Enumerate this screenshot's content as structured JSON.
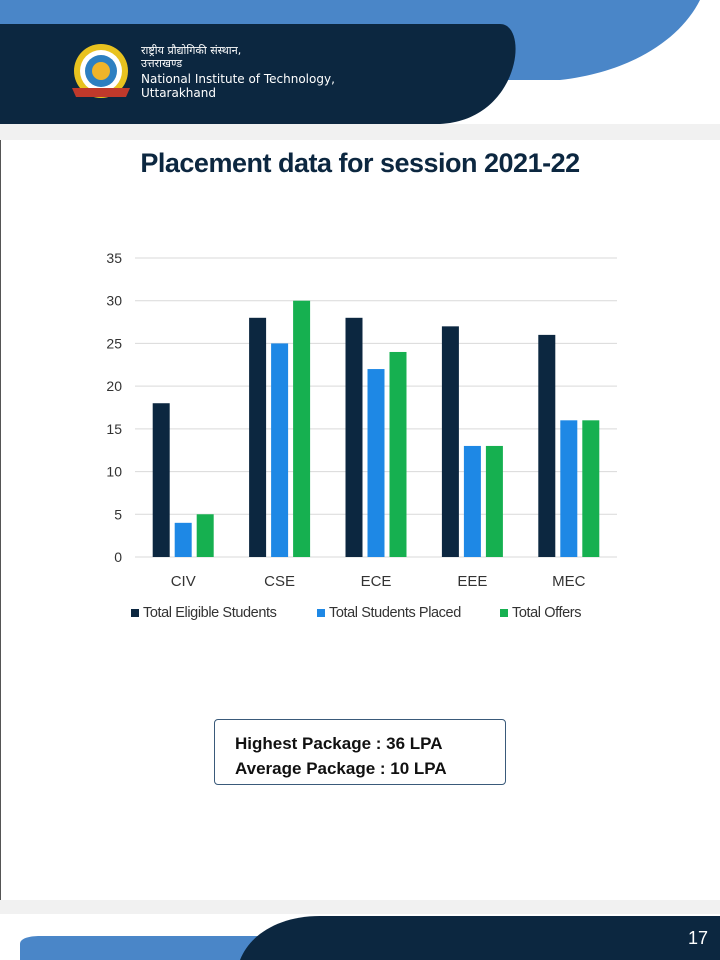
{
  "header": {
    "institute_hindi_line1": "राष्ट्रीय प्रौद्योगिकी संस्थान,",
    "institute_hindi_line2": "उत्तराखण्ड",
    "institute_english_line1": "National Institute of Technology,",
    "institute_english_line2": "Uttarakhand",
    "colors": {
      "navy": "#0c2740",
      "blue": "#4a86c8"
    }
  },
  "slide_title": "Placement data for session 2021-22",
  "chart_data": {
    "type": "bar",
    "title": "",
    "categories": [
      "CIV",
      "CSE",
      "ECE",
      "EEE",
      "MEC"
    ],
    "series": [
      {
        "name": "Total Eligible Students",
        "values": [
          18,
          28,
          28,
          27,
          26
        ],
        "color": "#0c2740"
      },
      {
        "name": "Total Students Placed",
        "values": [
          4,
          25,
          22,
          13,
          16
        ],
        "color": "#1e88e5"
      },
      {
        "name": "Total Offers",
        "values": [
          5,
          30,
          24,
          13,
          16
        ],
        "color": "#16b050"
      }
    ],
    "y_ticks": [
      "0",
      "5",
      "10",
      "15",
      "20",
      "25",
      "30",
      "35"
    ],
    "ylim": [
      0,
      35
    ],
    "grid": true,
    "legend_position": "bottom",
    "xlabel": "",
    "ylabel": ""
  },
  "packages": {
    "highest": "Highest Package : 36 LPA",
    "average": "Average Package : 10 LPA"
  },
  "footer": {
    "page_number": "17"
  }
}
